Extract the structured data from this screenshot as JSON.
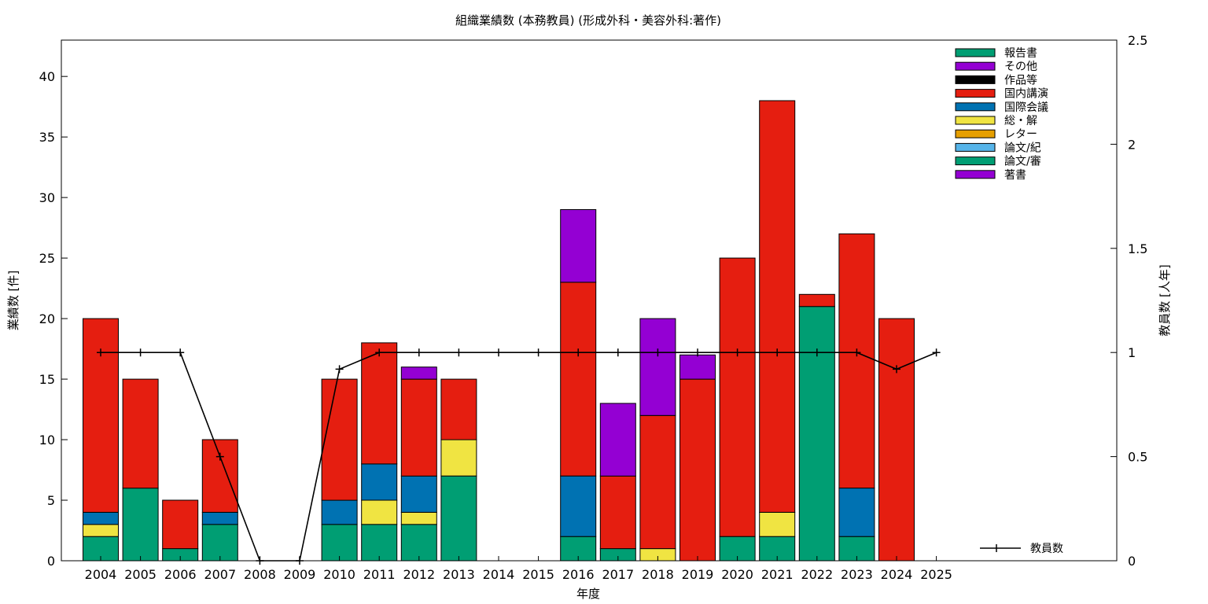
{
  "chart_data": {
    "type": "bar",
    "stacked": true,
    "title": "組織業績数 (本務教員) (形成外科・美容外科:著作)",
    "xlabel": "年度",
    "ylabel": "業績数 [件]",
    "y2label": "教員数 [人年]",
    "ylim": [
      0,
      43
    ],
    "y2lim": [
      0,
      2.5
    ],
    "yticks": [
      "0",
      "5",
      "10",
      "15",
      "20",
      "25",
      "30",
      "35",
      "40"
    ],
    "y2ticks": [
      "0",
      "0.5",
      "1",
      "1.5",
      "2",
      "2.5"
    ],
    "categories": [
      "2004",
      "2005",
      "2006",
      "2007",
      "2008",
      "2009",
      "2010",
      "2011",
      "2012",
      "2013",
      "2014",
      "2015",
      "2016",
      "2017",
      "2018",
      "2019",
      "2020",
      "2021",
      "2022",
      "2023",
      "2024",
      "2025"
    ],
    "series": [
      {
        "name": "論文/審",
        "color": "#009e73",
        "values": [
          2,
          6,
          1,
          3,
          0,
          0,
          3,
          3,
          3,
          7,
          0,
          0,
          2,
          1,
          0,
          0,
          2,
          2,
          21,
          2,
          0,
          0
        ]
      },
      {
        "name": "論文/紀",
        "color": "#56b4e9",
        "values": [
          0,
          0,
          0,
          0,
          0,
          0,
          0,
          0,
          0,
          0,
          0,
          0,
          0,
          0,
          0,
          0,
          0,
          0,
          0,
          0,
          0,
          0
        ]
      },
      {
        "name": "レター",
        "color": "#e69f00",
        "values": [
          0,
          0,
          0,
          0,
          0,
          0,
          0,
          0,
          0,
          0,
          0,
          0,
          0,
          0,
          0,
          0,
          0,
          0,
          0,
          0,
          0,
          0
        ]
      },
      {
        "name": "総・解",
        "color": "#f0e442",
        "values": [
          1,
          0,
          0,
          0,
          0,
          0,
          0,
          2,
          1,
          3,
          0,
          0,
          0,
          0,
          1,
          0,
          0,
          2,
          0,
          0,
          0,
          0
        ]
      },
      {
        "name": "国際会議",
        "color": "#0072b2",
        "values": [
          1,
          0,
          0,
          1,
          0,
          0,
          2,
          3,
          3,
          0,
          0,
          0,
          5,
          0,
          0,
          0,
          0,
          0,
          0,
          4,
          0,
          0
        ]
      },
      {
        "name": "国内講演",
        "color": "#e51e10",
        "values": [
          16,
          9,
          4,
          6,
          0,
          0,
          10,
          10,
          8,
          5,
          0,
          0,
          16,
          6,
          11,
          15,
          23,
          34,
          1,
          21,
          20,
          0
        ]
      },
      {
        "name": "作品等",
        "color": "#000000",
        "values": [
          0,
          0,
          0,
          0,
          0,
          0,
          0,
          0,
          0,
          0,
          0,
          0,
          0,
          0,
          0,
          0,
          0,
          0,
          0,
          0,
          0,
          0
        ]
      },
      {
        "name": "その他",
        "color": "#9400d3",
        "values": [
          0,
          0,
          0,
          0,
          0,
          0,
          0,
          0,
          1,
          0,
          0,
          0,
          6,
          6,
          8,
          2,
          0,
          0,
          0,
          0,
          0,
          0
        ]
      },
      {
        "name": "報告書",
        "color": "#009e73",
        "values": [
          0,
          0,
          0,
          0,
          0,
          0,
          0,
          0,
          0,
          0,
          0,
          0,
          0,
          0,
          0,
          0,
          0,
          0,
          0,
          0,
          0,
          0
        ]
      },
      {
        "name": "著書",
        "color": "#9400d3",
        "values": [
          0,
          0,
          0,
          0,
          0,
          0,
          0,
          0,
          0,
          0,
          0,
          0,
          0,
          0,
          0,
          0,
          0,
          0,
          0,
          0,
          0,
          0
        ]
      }
    ],
    "legend_order": [
      "報告書",
      "その他",
      "作品等",
      "国内講演",
      "国際会議",
      "総・解",
      "レター",
      "論文/紀",
      "論文/審",
      "著書"
    ],
    "line": {
      "name": "教員数",
      "axis": "y2",
      "color": "#000000",
      "values": [
        1,
        1,
        1,
        0.5,
        0,
        0,
        0.92,
        1,
        1,
        1,
        1,
        1,
        1,
        1,
        1,
        1,
        1,
        1,
        1,
        1,
        0.92,
        1
      ]
    },
    "legend_position": "top-right",
    "grid": false
  }
}
